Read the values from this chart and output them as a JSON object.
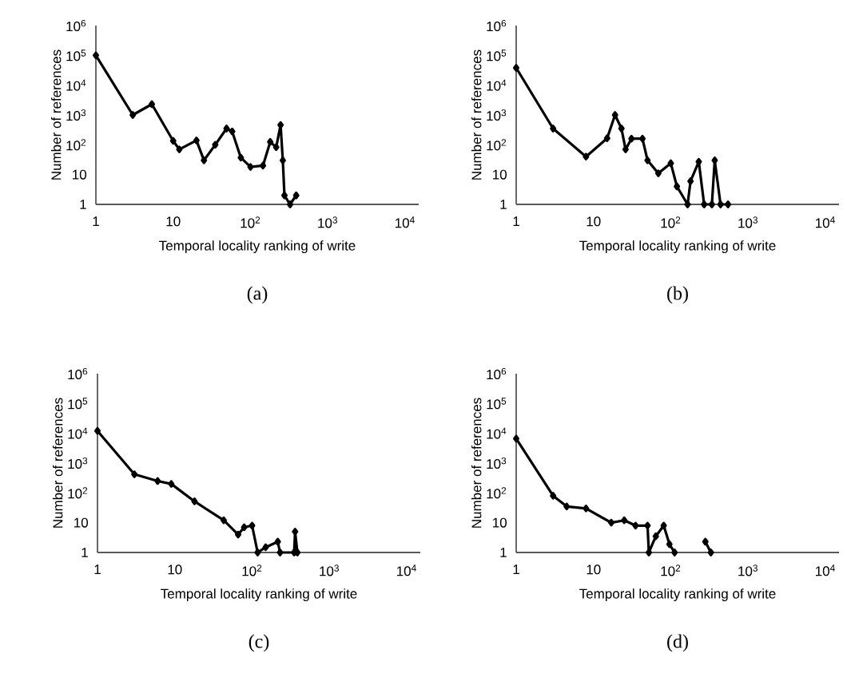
{
  "chart_data": [
    {
      "type": "line",
      "title": "(a)",
      "xlabel": "Temporal locality ranking of write",
      "ylabel": "Number of references",
      "log": "xy",
      "marker": "diamond",
      "line_style": "solid",
      "xlim": [
        1,
        15000
      ],
      "ylim": [
        1,
        1000000
      ],
      "xticks": [
        1,
        10,
        {
          "value": 100,
          "label": "10$^{2}$"
        },
        {
          "value": 1000,
          "label": "10$^{3}$"
        },
        {
          "value": 10000,
          "label": "10$^{4}$"
        }
      ],
      "yticks": [
        1,
        10,
        {
          "value": 100,
          "label": "10$^{2}$"
        },
        {
          "value": 1000,
          "label": "10$^{3}$"
        },
        {
          "value": 10000,
          "label": "10$^{4}$"
        },
        {
          "value": 100000,
          "label": "10$^{5}$"
        },
        {
          "value": 1000000,
          "label": "10$^{6}$"
        }
      ],
      "series": [
        {
          "color": "#000000",
          "x": [
            1,
            3,
            5.3,
            10,
            12,
            20,
            25,
            35,
            49,
            58,
            75,
            100,
            145,
            180,
            215,
            245,
            262,
            275,
            325,
            390
          ],
          "values": [
            100000,
            1000,
            2300,
            135,
            70,
            140,
            30,
            100,
            350,
            280,
            37,
            18,
            20,
            125,
            83,
            460,
            30,
            2,
            1,
            2
          ]
        }
      ]
    },
    {
      "type": "line",
      "title": "(b)",
      "xlabel": "Temporal locality ranking of write",
      "ylabel": "Number of references",
      "log": "xy",
      "marker": "diamond",
      "line_style": "solid",
      "xlim": [
        1,
        15000
      ],
      "ylim": [
        1,
        1000000
      ],
      "xticks": [
        1,
        10,
        {
          "value": 100,
          "label": "10$^{2}$"
        },
        {
          "value": 1000,
          "label": "10$^{3}$"
        },
        {
          "value": 10000,
          "label": "10$^{4}$"
        }
      ],
      "yticks": [
        1,
        10,
        {
          "value": 100,
          "label": "10$^{2}$"
        },
        {
          "value": 1000,
          "label": "10$^{3}$"
        },
        {
          "value": 10000,
          "label": "10$^{4}$"
        },
        {
          "value": 100000,
          "label": "10$^{5}$"
        },
        {
          "value": 1000000,
          "label": "10$^{6}$"
        }
      ],
      "series": [
        {
          "color": "#000000",
          "x": [
            1,
            3,
            8,
            15,
            19,
            23,
            26,
            31,
            43,
            50,
            69,
            100,
            120,
            165,
            180,
            230,
            270,
            340,
            370,
            440,
            550
          ],
          "values": [
            38000,
            350,
            40,
            165,
            1000,
            350,
            70,
            160,
            160,
            30,
            11,
            24,
            4,
            1,
            6,
            27,
            1,
            1,
            30,
            1,
            1
          ]
        }
      ]
    },
    {
      "type": "line",
      "title": "(c)",
      "xlabel": "Temporal locality ranking of write",
      "ylabel": "Number of references",
      "log": "xy",
      "marker": "diamond",
      "line_style": "solid",
      "xlim": [
        1,
        15000
      ],
      "ylim": [
        1,
        1000000
      ],
      "xticks": [
        1,
        10,
        {
          "value": 100,
          "label": "10$^{2}$"
        },
        {
          "value": 1000,
          "label": "10$^{3}$"
        },
        {
          "value": 10000,
          "label": "10$^{4}$"
        }
      ],
      "yticks": [
        1,
        10,
        {
          "value": 100,
          "label": "10$^{2}$"
        },
        {
          "value": 1000,
          "label": "10$^{3}$"
        },
        {
          "value": 10000,
          "label": "10$^{4}$"
        },
        {
          "value": 100000,
          "label": "10$^{5}$"
        },
        {
          "value": 1000000,
          "label": "10$^{6}$"
        }
      ],
      "series": [
        {
          "color": "#000000",
          "x": [
            1,
            3,
            6,
            9,
            18,
            43,
            66,
            79,
            100,
            118,
            150,
            215,
            230,
            350,
            360,
            385
          ],
          "values": [
            12000,
            420,
            250,
            200,
            52,
            12,
            4,
            7,
            8,
            1,
            1.5,
            2.3,
            1,
            1,
            5,
            1
          ]
        }
      ]
    },
    {
      "type": "line",
      "title": "(d)",
      "xlabel": "Temporal locality ranking of write",
      "ylabel": "Number of references",
      "log": "xy",
      "marker": "diamond",
      "line_style": "solid",
      "xlim": [
        1,
        15000
      ],
      "ylim": [
        1,
        1000000
      ],
      "xticks": [
        1,
        10,
        {
          "value": 100,
          "label": "10$^{2}$"
        },
        {
          "value": 1000,
          "label": "10$^{3}$"
        },
        {
          "value": 10000,
          "label": "10$^{4}$"
        }
      ],
      "yticks": [
        1,
        10,
        {
          "value": 100,
          "label": "10$^{2}$"
        },
        {
          "value": 1000,
          "label": "10$^{3}$"
        },
        {
          "value": 10000,
          "label": "10$^{4}$"
        },
        {
          "value": 100000,
          "label": "10$^{5}$"
        },
        {
          "value": 1000000,
          "label": "10$^{6}$"
        }
      ],
      "series": [
        {
          "color": "#000000",
          "x": [
            1,
            3,
            4.5,
            8,
            17,
            25,
            35,
            50,
            52,
            64,
            81,
            96,
            112,
            200,
            280,
            330
          ],
          "values": [
            6600,
            80,
            35,
            30,
            10,
            12,
            8,
            8,
            1,
            3.5,
            8,
            1.9,
            1,
            null,
            2.3,
            1
          ]
        }
      ]
    }
  ]
}
